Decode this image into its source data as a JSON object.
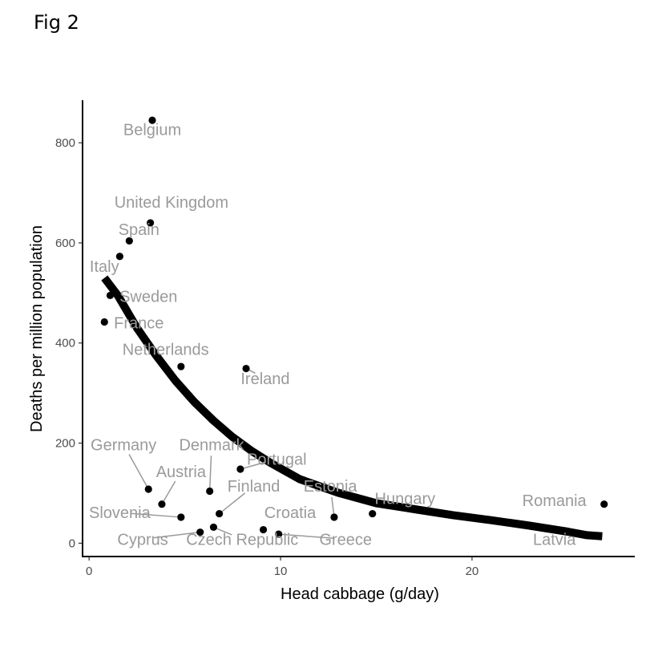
{
  "figure_label": "Fig 2",
  "chart_data": {
    "type": "scatter",
    "title": "",
    "xlabel": "Head cabbage (g/day)",
    "ylabel": "Deaths per million population",
    "xlim": [
      -0.3,
      28.5
    ],
    "ylim": [
      -25,
      885
    ],
    "x_ticks": [
      0,
      10,
      20
    ],
    "y_ticks": [
      0,
      200,
      400,
      600,
      800
    ],
    "points": [
      {
        "country": "Belgium",
        "x": 3.3,
        "y": 845,
        "label": "Belgium",
        "lx": 3.3,
        "ly": 815
      },
      {
        "country": "United Kingdom",
        "x": 3.2,
        "y": 640,
        "label": "United Kingdom",
        "lx": 4.3,
        "ly": 670
      },
      {
        "country": "Spain",
        "x": 2.1,
        "y": 604,
        "label": "Spain",
        "lx": 2.6,
        "ly": 616
      },
      {
        "country": "Italy",
        "x": 1.6,
        "y": 573,
        "label": "Italy",
        "lx": 0.8,
        "ly": 542
      },
      {
        "country": "Sweden",
        "x": 1.1,
        "y": 495,
        "label": "Sweden",
        "lx": 3.1,
        "ly": 482
      },
      {
        "country": "France",
        "x": 0.8,
        "y": 442,
        "label": "France",
        "lx": 2.6,
        "ly": 429
      },
      {
        "country": "Netherlands",
        "x": 4.8,
        "y": 353,
        "label": "Netherlands",
        "lx": 4.0,
        "ly": 376
      },
      {
        "country": "Ireland",
        "x": 8.2,
        "y": 349,
        "label": "Ireland",
        "lx": 9.2,
        "ly": 318,
        "leader": true
      },
      {
        "country": "Germany",
        "x": 3.1,
        "y": 108,
        "label": "Germany",
        "lx": 1.8,
        "ly": 186,
        "leader": true
      },
      {
        "country": "Denmark",
        "x": 6.3,
        "y": 104,
        "label": "Denmark",
        "lx": 6.4,
        "ly": 186,
        "leader": true
      },
      {
        "country": "Austria",
        "x": 3.8,
        "y": 78,
        "label": "Austria",
        "lx": 4.8,
        "ly": 132,
        "leader": true
      },
      {
        "country": "Portugal",
        "x": 7.9,
        "y": 148,
        "label": "Portugal",
        "lx": 9.8,
        "ly": 157,
        "leader": true
      },
      {
        "country": "Finland",
        "x": 6.8,
        "y": 59,
        "label": "Finland",
        "lx": 8.6,
        "ly": 103,
        "leader": true
      },
      {
        "country": "Slovenia",
        "x": 4.8,
        "y": 52,
        "label": "Slovenia",
        "lx": 1.6,
        "ly": 50,
        "leader": true
      },
      {
        "country": "Estonia",
        "x": 12.8,
        "y": 52,
        "label": "Estonia",
        "lx": 12.6,
        "ly": 103,
        "leader": true
      },
      {
        "country": "Hungary",
        "x": 14.8,
        "y": 59,
        "label": "Hungary",
        "lx": 16.5,
        "ly": 78
      },
      {
        "country": "Croatia",
        "x": 9.1,
        "y": 27,
        "label": "Croatia",
        "lx": 10.5,
        "ly": 50
      },
      {
        "country": "Cyprus",
        "x": 5.8,
        "y": 22,
        "label": "Cyprus",
        "lx": 2.8,
        "ly": -3,
        "leader": true
      },
      {
        "country": "Czech Republic",
        "x": 6.5,
        "y": 32,
        "label": "Czech Republic",
        "lx": 8.0,
        "ly": -3,
        "leader": true
      },
      {
        "country": "Greece",
        "x": 9.9,
        "y": 18,
        "label": "Greece",
        "lx": 13.4,
        "ly": -3,
        "leader": true
      },
      {
        "country": "Romania",
        "x": 26.9,
        "y": 78,
        "label": "Romania",
        "lx": 24.3,
        "ly": 74
      },
      {
        "country": "Latvia",
        "x": 25.9,
        "y": 17,
        "label": "Latvia",
        "lx": 24.3,
        "ly": -3
      }
    ],
    "fit_line": {
      "x": [
        0.8,
        1.5,
        2.5,
        3.5,
        4.5,
        5.5,
        6.5,
        7.5,
        8.5,
        9.5,
        11,
        13,
        15,
        17,
        19,
        21,
        23,
        25,
        26,
        26.8
      ],
      "y": [
        530,
        495,
        430,
        375,
        325,
        282,
        245,
        212,
        184,
        160,
        128,
        101,
        80,
        68,
        56,
        46,
        35,
        23,
        16,
        14
      ]
    }
  }
}
